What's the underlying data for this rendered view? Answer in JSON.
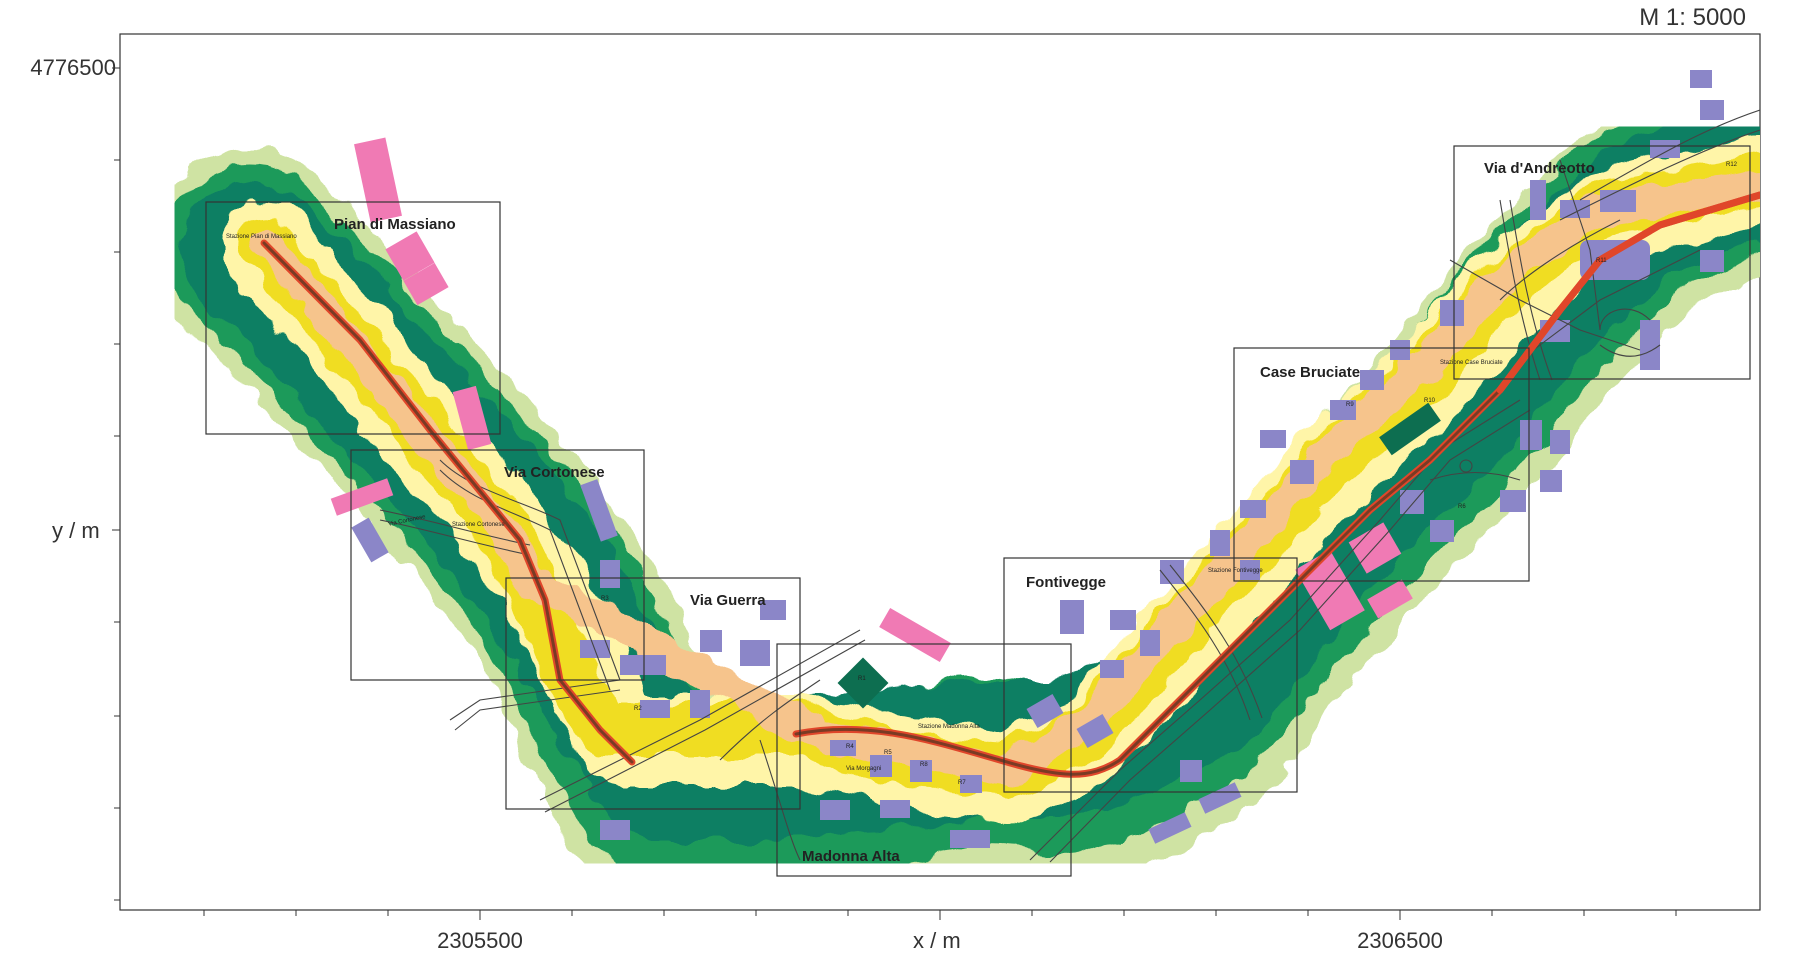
{
  "map": {
    "scale_label": "M 1:  5000",
    "y_tick": "4776500",
    "y_label": "y / m",
    "x_label": "x / m",
    "x_ticks": [
      "2305500",
      "2306500"
    ],
    "areas": [
      {
        "name": "Pian di Massiano"
      },
      {
        "name": "Via Cortonese"
      },
      {
        "name": "Via Guerra"
      },
      {
        "name": "Madonna Alta"
      },
      {
        "name": "Fontivegge"
      },
      {
        "name": "Case Bruciate"
      },
      {
        "name": "Via d'Andreotto"
      }
    ],
    "stations": [
      {
        "name": "Stazione Pian di Massiano"
      },
      {
        "name": "Stazione Cortonese"
      },
      {
        "name": "Stazione Madonna Alta"
      },
      {
        "name": "Stazione Fontivegge"
      },
      {
        "name": "Stazione Case Bruciate"
      }
    ],
    "streets": [
      {
        "name": "Via Cortonese"
      },
      {
        "name": "Via Morgagni"
      }
    ],
    "receptors": [
      "R1",
      "R2",
      "R3",
      "R4",
      "R5",
      "R6",
      "R7",
      "R8",
      "R9",
      "R10",
      "R11",
      "R12"
    ],
    "colors": {
      "light_green": "#cfe3a3",
      "green": "#1e9a5a",
      "teal": "#0d7f64",
      "cream": "#fff5a8",
      "yellow": "#f0dd20",
      "peach": "#f6c48c",
      "orange": "#f08a2a",
      "red": "#d24a2a",
      "building_purple": "#8b86c8",
      "building_pink": "#f07ab4",
      "track": "#7a3b24"
    }
  }
}
